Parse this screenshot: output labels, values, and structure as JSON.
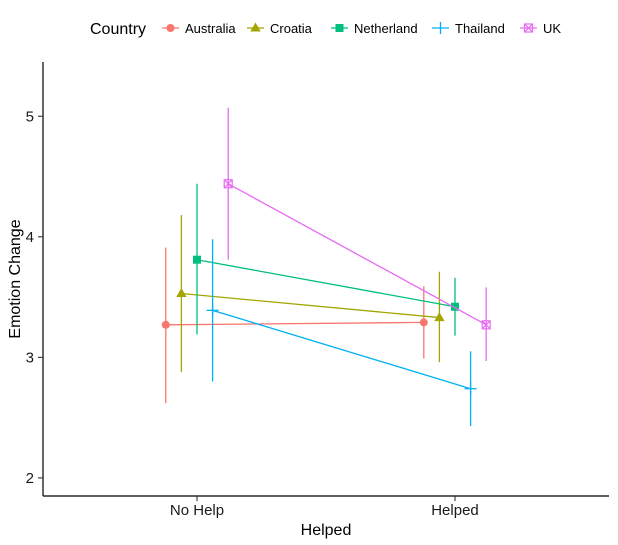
{
  "chart_data": {
    "type": "line",
    "title": "",
    "xlabel": "Helped",
    "ylabel": "Emotion Change",
    "categories": [
      "No Help",
      "Helped"
    ],
    "ylim": [
      1.85,
      5.45
    ],
    "yticks": [
      2,
      3,
      4,
      5
    ],
    "grid": false,
    "legend": {
      "title": "Country",
      "position": "top"
    },
    "series": [
      {
        "name": "Australia",
        "color": "#F8766D",
        "shape": "circle",
        "values": [
          3.27,
          3.29
        ],
        "lower": [
          2.62,
          2.99
        ],
        "upper": [
          3.91,
          3.59
        ]
      },
      {
        "name": "Croatia",
        "color": "#A3A500",
        "shape": "triangle",
        "values": [
          3.53,
          3.33
        ],
        "lower": [
          2.88,
          2.96
        ],
        "upper": [
          4.18,
          3.71
        ]
      },
      {
        "name": "Netherland",
        "color": "#00BF7D",
        "shape": "square",
        "values": [
          3.81,
          3.42
        ],
        "lower": [
          3.19,
          3.18
        ],
        "upper": [
          4.44,
          3.66
        ]
      },
      {
        "name": "Thailand",
        "color": "#00B0F6",
        "shape": "plus",
        "values": [
          3.39,
          2.74
        ],
        "lower": [
          2.8,
          2.43
        ],
        "upper": [
          3.98,
          3.05
        ]
      },
      {
        "name": "UK",
        "color": "#E76BF3",
        "shape": "boxcross",
        "values": [
          4.44,
          3.27
        ],
        "lower": [
          3.81,
          2.97
        ],
        "upper": [
          5.07,
          3.58
        ]
      }
    ]
  }
}
